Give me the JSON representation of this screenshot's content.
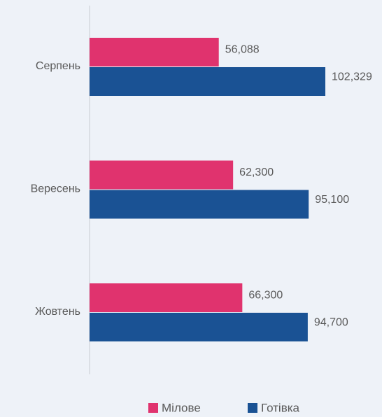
{
  "chart_data": {
    "type": "bar",
    "orientation": "horizontal",
    "categories": [
      "Серпень",
      "Вересень",
      "Жовтень"
    ],
    "series": [
      {
        "name": "Мілове",
        "color": "#e0336e",
        "values": [
          56088,
          62300,
          66300
        ],
        "value_labels": [
          "56,088",
          "62,300",
          "66,300"
        ]
      },
      {
        "name": "Готівка",
        "color": "#1a5294",
        "values": [
          102329,
          95100,
          94700
        ],
        "value_labels": [
          "102,329",
          "95,100",
          "94,700"
        ]
      }
    ],
    "legend": "bottom"
  }
}
